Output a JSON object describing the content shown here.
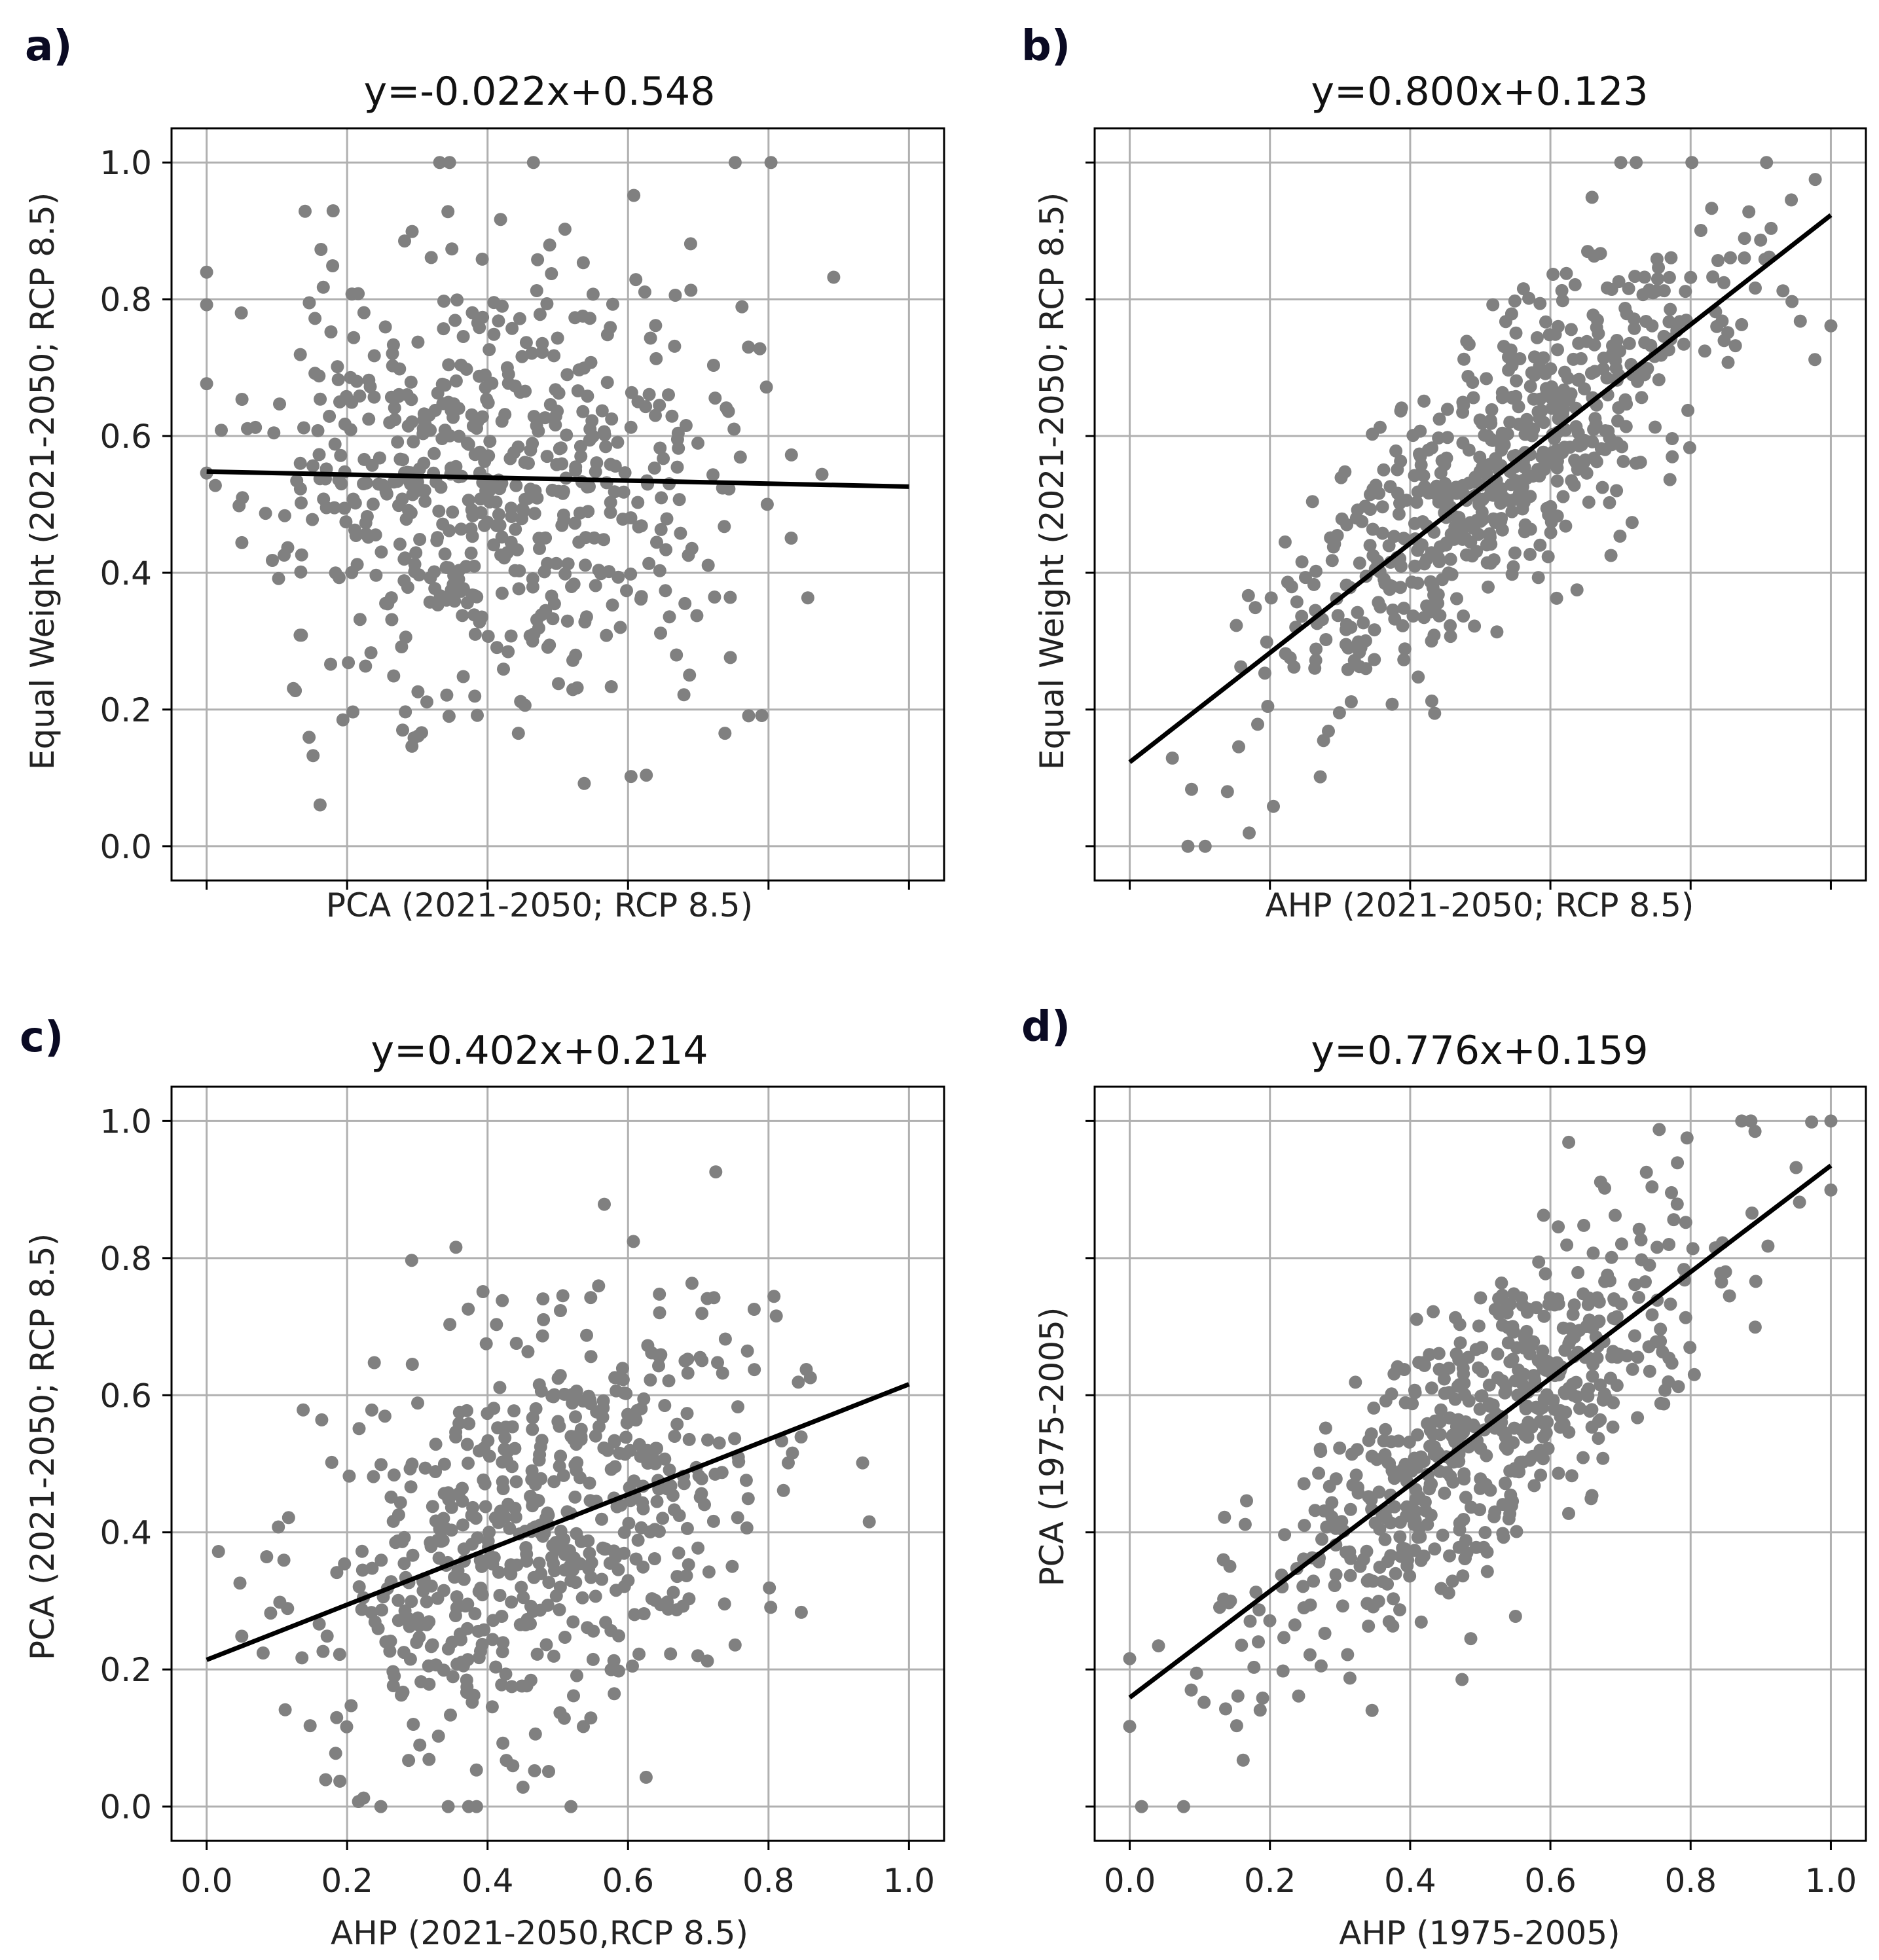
{
  "chart_data": [
    {
      "type": "scatter",
      "panel": "a)",
      "title": "y=-0.022x+0.548",
      "xlabel": "PCA (2021-2050; RCP 8.5)",
      "ylabel": "Equal Weight (2021-2050; RCP 8.5)",
      "xlim": [
        -0.05,
        1.05
      ],
      "ylim": [
        -0.05,
        1.05
      ],
      "xticks": [
        0.0,
        0.2,
        0.4,
        0.6,
        0.8,
        1.0
      ],
      "xtick_labels_shown": false,
      "yticks": [
        0.0,
        0.2,
        0.4,
        0.6,
        0.8,
        1.0
      ],
      "ytick_labels_shown": true,
      "fit": {
        "slope": -0.022,
        "intercept": 0.548
      },
      "points_approx": {
        "n": 600,
        "x_mean": 0.4,
        "x_sd": 0.17,
        "seed": 11
      },
      "grid": true
    },
    {
      "type": "scatter",
      "panel": "b)",
      "title": "y=0.800x+0.123",
      "xlabel": "AHP (2021-2050; RCP 8.5)",
      "ylabel": "Equal Weight (2021-2050; RCP 8.5)",
      "xlim": [
        -0.05,
        1.05
      ],
      "ylim": [
        -0.05,
        1.05
      ],
      "xticks": [
        0.0,
        0.2,
        0.4,
        0.6,
        0.8,
        1.0
      ],
      "xtick_labels_shown": false,
      "yticks": [
        0.0,
        0.2,
        0.4,
        0.6,
        0.8,
        1.0
      ],
      "ytick_labels_shown": false,
      "fit": {
        "slope": 0.8,
        "intercept": 0.123
      },
      "points_approx": {
        "n": 600,
        "x_mean": 0.52,
        "x_sd": 0.16,
        "seed": 23
      },
      "grid": true
    },
    {
      "type": "scatter",
      "panel": "c)",
      "title": "y=0.402x+0.214",
      "xlabel": "AHP (2021-2050,RCP 8.5)",
      "ylabel": "PCA (2021-2050; RCP 8.5)",
      "xlim": [
        -0.05,
        1.05
      ],
      "ylim": [
        -0.05,
        1.05
      ],
      "xticks": [
        0.0,
        0.2,
        0.4,
        0.6,
        0.8,
        1.0
      ],
      "xtick_labels_shown": true,
      "yticks": [
        0.0,
        0.2,
        0.4,
        0.6,
        0.8,
        1.0
      ],
      "ytick_labels_shown": true,
      "fit": {
        "slope": 0.402,
        "intercept": 0.214
      },
      "points_approx": {
        "n": 600,
        "x_mean": 0.48,
        "x_sd": 0.16,
        "seed": 37
      },
      "grid": true
    },
    {
      "type": "scatter",
      "panel": "d)",
      "title": "y=0.776x+0.159",
      "xlabel": "AHP (1975-2005)",
      "ylabel": "PCA (1975-2005)",
      "xlim": [
        -0.05,
        1.05
      ],
      "ylim": [
        -0.05,
        1.05
      ],
      "xticks": [
        0.0,
        0.2,
        0.4,
        0.6,
        0.8,
        1.0
      ],
      "xtick_labels_shown": true,
      "yticks": [
        0.0,
        0.2,
        0.4,
        0.6,
        0.8,
        1.0
      ],
      "ytick_labels_shown": false,
      "fit": {
        "slope": 0.776,
        "intercept": 0.159
      },
      "points_approx": {
        "n": 600,
        "x_mean": 0.5,
        "x_sd": 0.17,
        "seed": 53
      },
      "grid": true
    }
  ],
  "style": {
    "point_color": "#808080",
    "fit_color": "#000000",
    "grid_color": "#b0b0b0",
    "axis_color": "#000000"
  }
}
